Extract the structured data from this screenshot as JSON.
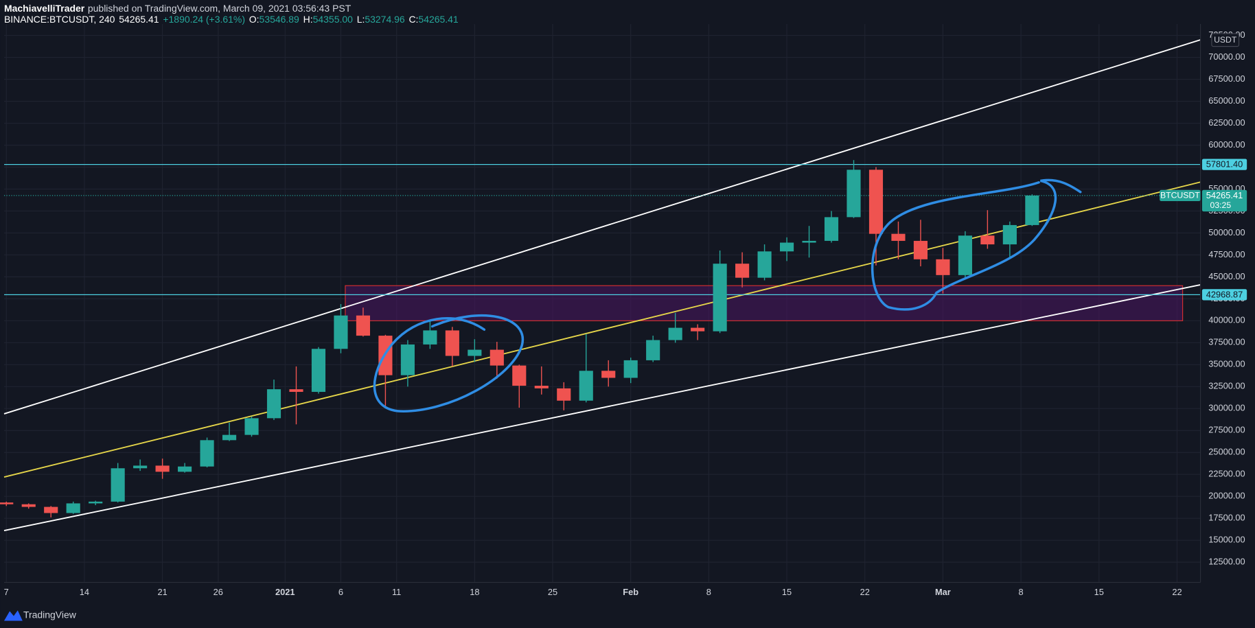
{
  "chart_data": {
    "type": "candlestick",
    "author": "MachiavelliTrader",
    "published": "published on TradingView.com, March 09, 2021 03:56:43 PST",
    "symbol": "BINANCE:BTCUSDT, 240",
    "legend": {
      "last": "54265.41",
      "change": "+1890.24 (+3.61%)",
      "o_label": "O:",
      "o": "53546.89",
      "h_label": "H:",
      "h": "54355.00",
      "l_label": "L:",
      "l": "53274.96",
      "c_label": "C:",
      "c": "54265.41"
    },
    "currency": "USDT",
    "branding": "TradingView",
    "up_color": "#26a69a",
    "down_color": "#ef5350",
    "grid": true,
    "x": [
      0,
      2,
      4,
      6,
      8,
      10,
      12,
      14,
      16,
      18,
      20,
      22,
      24,
      26,
      28,
      30,
      32,
      34,
      36,
      38,
      40,
      42,
      44,
      46,
      48,
      50,
      52,
      54,
      56,
      58,
      60,
      62,
      64,
      66,
      68,
      70,
      72,
      74,
      76,
      78,
      80,
      82,
      84,
      86,
      88,
      90,
      92
    ],
    "open": [
      19300,
      19100,
      18800,
      18100,
      19200,
      19400,
      23200,
      23500,
      22800,
      23400,
      26400,
      27000,
      28900,
      32200,
      31900,
      36800,
      40600,
      38300,
      33800,
      37300,
      38900,
      36000,
      36700,
      34900,
      32600,
      32300,
      30900,
      34300,
      33500,
      35500,
      37800,
      39200,
      38800,
      46500,
      44900,
      47900,
      48900,
      49100,
      51800,
      57200,
      49900,
      49100,
      47000,
      45200,
      49700,
      48700,
      50900
    ],
    "high": [
      19400,
      19200,
      18900,
      19400,
      19500,
      23800,
      24200,
      24300,
      23800,
      26700,
      28400,
      29100,
      33300,
      34800,
      37000,
      41900,
      41500,
      38400,
      37800,
      40100,
      39300,
      37900,
      37600,
      35000,
      34800,
      33000,
      38500,
      35500,
      35800,
      38300,
      40900,
      39600,
      48000,
      47800,
      48700,
      49500,
      50800,
      52500,
      58300,
      57500,
      51300,
      51500,
      48300,
      50200,
      52600,
      51300,
      54400
    ],
    "low": [
      18900,
      18600,
      17600,
      18000,
      19000,
      19300,
      22900,
      22000,
      22700,
      23300,
      26300,
      26800,
      28700,
      28200,
      31700,
      36300,
      38200,
      30300,
      32500,
      36800,
      34800,
      35300,
      33400,
      30100,
      31600,
      29800,
      30700,
      32500,
      32900,
      35300,
      37500,
      37800,
      38600,
      43800,
      44600,
      46800,
      47200,
      48900,
      51700,
      46300,
      47000,
      46200,
      43100,
      44900,
      48200,
      47100,
      50800
    ],
    "close": [
      19100,
      18800,
      18100,
      19200,
      19400,
      23200,
      23500,
      22800,
      23400,
      26400,
      27000,
      28900,
      32200,
      31900,
      36800,
      40600,
      38300,
      33800,
      37300,
      38900,
      36000,
      36700,
      34900,
      32600,
      32300,
      30900,
      34300,
      33500,
      35500,
      37800,
      39200,
      38800,
      46500,
      44900,
      47900,
      48900,
      49100,
      51800,
      57200,
      49900,
      49100,
      47000,
      45200,
      49700,
      48700,
      50900,
      54265.41
    ],
    "xlim": [
      -0.2,
      107.1
    ],
    "ylim": [
      10200,
      73800
    ],
    "xticks": [
      {
        "value": 0,
        "label": "7"
      },
      {
        "value": 7,
        "label": "14"
      },
      {
        "value": 14,
        "label": "21"
      },
      {
        "value": 19,
        "label": "26"
      },
      {
        "value": 25,
        "label": "2021",
        "bold": true
      },
      {
        "value": 30,
        "label": "6"
      },
      {
        "value": 35,
        "label": "11"
      },
      {
        "value": 42,
        "label": "18"
      },
      {
        "value": 49,
        "label": "25"
      },
      {
        "value": 56,
        "label": "Feb",
        "bold": true
      },
      {
        "value": 63,
        "label": "8"
      },
      {
        "value": 70,
        "label": "15"
      },
      {
        "value": 77,
        "label": "22"
      },
      {
        "value": 84,
        "label": "Mar",
        "bold": true
      },
      {
        "value": 91,
        "label": "8"
      },
      {
        "value": 98,
        "label": "15"
      },
      {
        "value": 105,
        "label": "22"
      }
    ],
    "yticks": [
      {
        "value": 12500,
        "label": "12500.00"
      },
      {
        "value": 15000,
        "label": "15000.00"
      },
      {
        "value": 17500,
        "label": "17500.00"
      },
      {
        "value": 20000,
        "label": "20000.00"
      },
      {
        "value": 22500,
        "label": "22500.00"
      },
      {
        "value": 25000,
        "label": "25000.00"
      },
      {
        "value": 27500,
        "label": "27500.00"
      },
      {
        "value": 30000,
        "label": "30000.00"
      },
      {
        "value": 32500,
        "label": "32500.00"
      },
      {
        "value": 35000,
        "label": "35000.00"
      },
      {
        "value": 37500,
        "label": "37500.00"
      },
      {
        "value": 40000,
        "label": "40000.00"
      },
      {
        "value": 42500,
        "label": "42500.00"
      },
      {
        "value": 45000,
        "label": "45000.00"
      },
      {
        "value": 47500,
        "label": "47500.00"
      },
      {
        "value": 50000,
        "label": "50000.00"
      },
      {
        "value": 52500,
        "label": "52500.00"
      },
      {
        "value": 55000,
        "label": "55000.00"
      },
      {
        "value": 57500,
        "label": "57500.00"
      },
      {
        "value": 60000,
        "label": "60000.00"
      },
      {
        "value": 62500,
        "label": "62500.00"
      },
      {
        "value": 65000,
        "label": "65000.00"
      },
      {
        "value": 67500,
        "label": "67500.00"
      },
      {
        "value": 70000,
        "label": "70000.00"
      },
      {
        "value": 72500,
        "label": "72500.00"
      }
    ],
    "hlines": [
      {
        "value": 57801.4,
        "label": "57801.40",
        "color": "#4dd0e1"
      },
      {
        "value": 42968.87,
        "label": "42968.87",
        "color": "#4dd0e1"
      }
    ],
    "last_price": {
      "value": 54265.41,
      "label": "54265.41",
      "name": "BTCUSDT",
      "countdown": "03:25",
      "color": "#26a69a"
    },
    "trendlines": [
      {
        "color": "#ffffff",
        "x": [
          -0.2,
          107.1
        ],
        "y": [
          29400,
          72000
        ]
      },
      {
        "color": "#ffffff",
        "x": [
          -0.2,
          107.1
        ],
        "y": [
          16100,
          44100
        ]
      },
      {
        "color": "#e6d64a",
        "x": [
          -0.2,
          107.1
        ],
        "y": [
          22200,
          55800
        ]
      }
    ],
    "zone": {
      "x": [
        30.4,
        105.5
      ],
      "y": [
        40000,
        44000
      ],
      "fill": "#4a1560",
      "stroke": "#d32f2f"
    }
  }
}
